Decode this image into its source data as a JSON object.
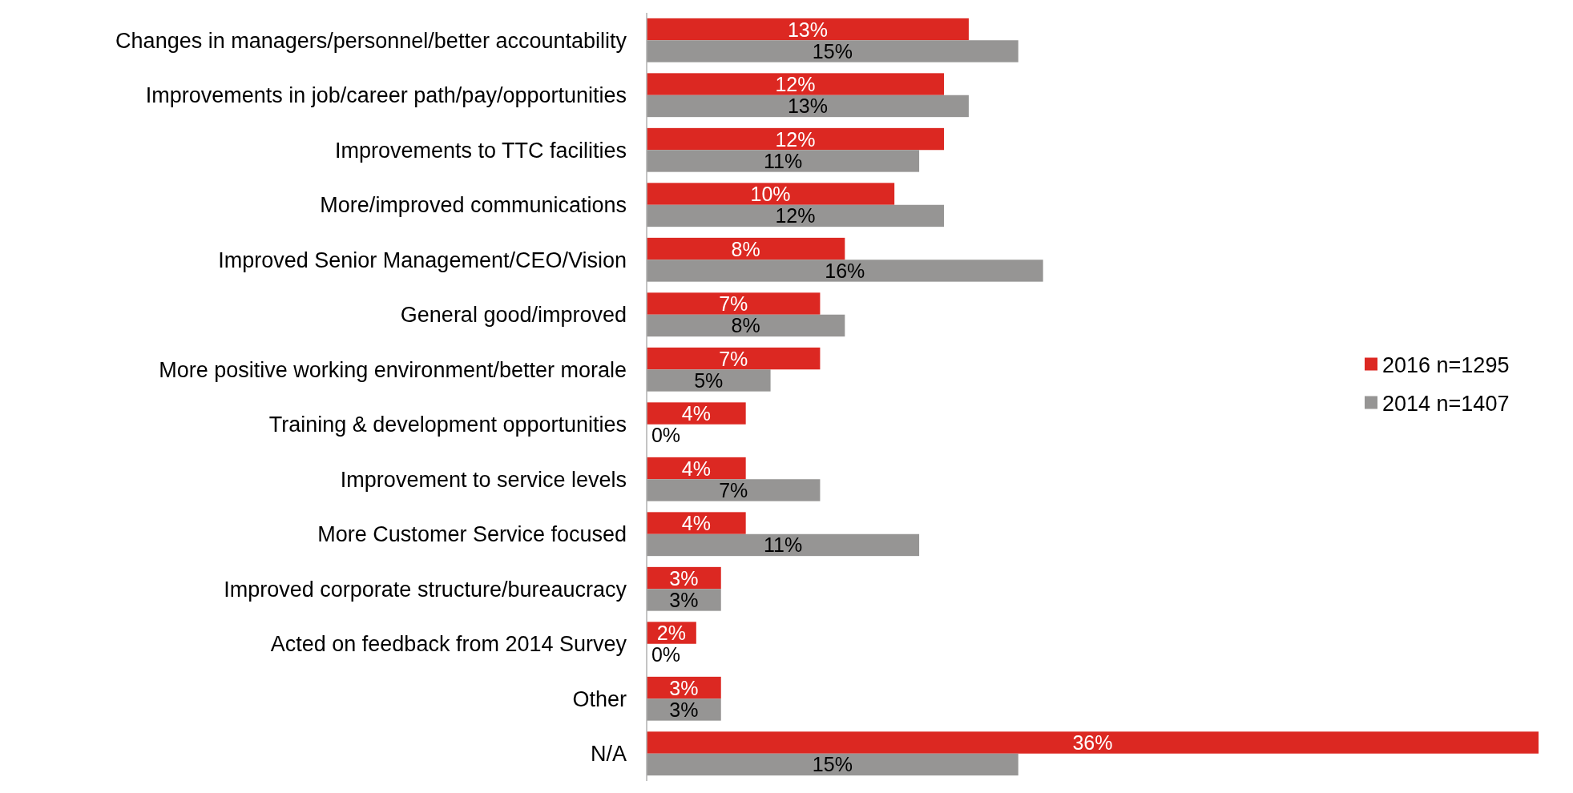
{
  "chart_data": {
    "type": "bar",
    "orientation": "horizontal",
    "legend": "right",
    "categories": [
      "Changes in managers/personnel/better accountability",
      "Improvements in job/career path/pay/opportunities",
      "Improvements to TTC facilities",
      "More/improved communications",
      "Improved Senior Management/CEO/Vision",
      "General good/improved",
      "More positive working environment/better morale",
      "Training & development opportunities",
      "Improvement to service levels",
      "More Customer Service focused",
      "Improved corporate structure/bureaucracy",
      "Acted on feedback from 2014 Survey",
      "Other",
      "N/A"
    ],
    "series": [
      {
        "name": "2016 n=1295",
        "color": "#dc2822",
        "values": [
          13,
          12,
          12,
          10,
          8,
          7,
          7,
          4,
          4,
          4,
          3,
          2,
          3,
          36
        ],
        "value_labels": [
          "13%",
          "12%",
          "12%",
          "10%",
          "8%",
          "7%",
          "7%",
          "4%",
          "4%",
          "4%",
          "3%",
          "2%",
          "3%",
          "36%"
        ]
      },
      {
        "name": "2014 n=1407",
        "color": "#969594",
        "values": [
          15,
          13,
          11,
          12,
          16,
          8,
          5,
          0,
          7,
          11,
          3,
          0,
          3,
          15
        ],
        "value_labels": [
          "15%",
          "13%",
          "11%",
          "12%",
          "16%",
          "8%",
          "5%",
          "0%",
          "7%",
          "11%",
          "3%",
          "0%",
          "3%",
          "15%"
        ]
      }
    ],
    "xlim": [
      0,
      36
    ],
    "tick_labels": "y"
  }
}
